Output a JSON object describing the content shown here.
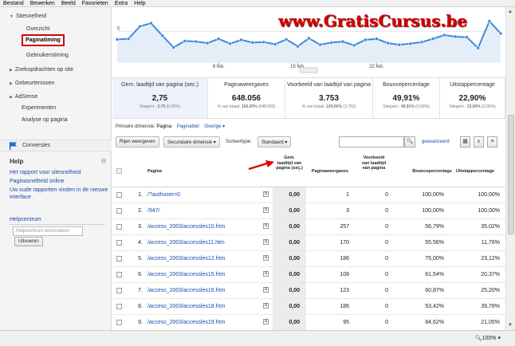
{
  "menu": [
    "Bestand",
    "Bewerken",
    "Beeld",
    "Favorieten",
    "Extra",
    "Help"
  ],
  "sidebar": {
    "section": "Sitesnelheid",
    "items": [
      "Overzicht",
      "Paginatiming",
      "Gebruikerstiming"
    ],
    "groups": [
      "Zoekopdrachten op site",
      "Gebeurtenissen",
      "AdSense"
    ],
    "links": [
      "Experimenten",
      "Analyse op pagina"
    ],
    "conversions": "Conversies"
  },
  "help": {
    "title": "Help",
    "collapse": "⊟",
    "links": [
      "Het rapport voor sitesnelheid",
      "Paginasnelheid online",
      "Uw oude rapporten vinden in de nieuwe interface"
    ],
    "center_title": "Helpcentrum",
    "search_placeholder": "Helpcentrum doorzoeken",
    "search_button": "Uitvoeren"
  },
  "chart_data": {
    "type": "line",
    "x_ticks": [
      "8 feb.",
      "15 feb.",
      "22 feb."
    ],
    "y_tick": "5",
    "y": [
      3.5,
      3.6,
      5.9,
      6.5,
      4.2,
      2.0,
      3.2,
      3.1,
      2.8,
      3.6,
      2.7,
      3.4,
      2.9,
      3.0,
      2.6,
      3.5,
      2.2,
      3.7,
      2.5,
      2.9,
      3.1,
      2.4,
      3.4,
      3.6,
      2.8,
      2.5,
      2.7,
      3.0,
      3.6,
      4.3,
      4.0,
      3.9,
      1.9,
      6.9,
      4.6
    ],
    "color": "#3d88d8"
  },
  "watermark": "www.GratisCursus.be",
  "metrics": [
    {
      "label": "Gem. laadtijd van pagina (sec.)",
      "value": "2,75",
      "sub_a": "Sitegem.:",
      "sub_b": "2,75",
      "sub_c": "(0,00%)"
    },
    {
      "label": "Paginaweergaves",
      "value": "648.056",
      "sub_a": "% van totaal:",
      "sub_b": "100,00%",
      "sub_c": "(648.056)"
    },
    {
      "label": "Voorbeeld van laadtijd van pagina",
      "value": "3.753",
      "sub_a": "% van totaal:",
      "sub_b": "100,00%",
      "sub_c": "(3.753)"
    },
    {
      "label": "Bouncepercentage",
      "value": "49,91%",
      "sub_a": "Sitegem.:",
      "sub_b": "49,91%",
      "sub_c": "(0,00%)"
    },
    {
      "label": "Uitstappercentage",
      "value": "22,90%",
      "sub_a": "Sitegem.:",
      "sub_b": "22,90%",
      "sub_c": "(0,00%)"
    }
  ],
  "dimension": {
    "label": "Primaire dimensie:",
    "current": "Pagina",
    "alt": "Paginatitel",
    "other": "Overige"
  },
  "toolbar": {
    "plot": "Rijen weergeven",
    "secondary": "Secundaire dimensie",
    "sort_label": "Sorteertype:",
    "sort_value": "Standaard",
    "advanced": "geavanceerd"
  },
  "table": {
    "headers": {
      "page": "Pagina",
      "loadtime": "Gem. laadtijd van pagina (sec.)",
      "views": "Paginaweergaves",
      "sample": "Voorbeeld van laadtijd van pagina",
      "bounce": "Bouncepercentage",
      "exit": "Uitstappercentage"
    },
    "rows": [
      {
        "n": "1.",
        "page": "/?authuser=0",
        "load": "0,00",
        "views": "1",
        "sample": "0",
        "bounce": "100,00%",
        "exit": "100,00%"
      },
      {
        "n": "2.",
        "page": "/947/",
        "load": "0,00",
        "views": "3",
        "sample": "0",
        "bounce": "100,00%",
        "exit": "100,00%"
      },
      {
        "n": "3.",
        "page": "/access_2003/accessles10.htm",
        "load": "0,00",
        "views": "257",
        "sample": "0",
        "bounce": "56,79%",
        "exit": "35,02%"
      },
      {
        "n": "4.",
        "page": "/access_2003/accessles11.htm",
        "load": "0,00",
        "views": "170",
        "sample": "0",
        "bounce": "55,56%",
        "exit": "11,76%"
      },
      {
        "n": "5.",
        "page": "/access_2003/accessles12.htm",
        "load": "0,00",
        "views": "186",
        "sample": "0",
        "bounce": "75,00%",
        "exit": "23,12%"
      },
      {
        "n": "6.",
        "page": "/access_2003/accessles15.htm",
        "load": "0,00",
        "views": "108",
        "sample": "0",
        "bounce": "61,54%",
        "exit": "20,37%"
      },
      {
        "n": "7.",
        "page": "/access_2003/accessles16.htm",
        "load": "0,00",
        "views": "123",
        "sample": "0",
        "bounce": "60,87%",
        "exit": "25,20%"
      },
      {
        "n": "8.",
        "page": "/access_2003/accessles18.htm",
        "load": "0,00",
        "views": "186",
        "sample": "0",
        "bounce": "53,42%",
        "exit": "39,78%"
      },
      {
        "n": "9.",
        "page": "/access_2003/accessles19.htm",
        "load": "0,00",
        "views": "95",
        "sample": "0",
        "bounce": "84,62%",
        "exit": "21,05%"
      }
    ]
  },
  "status": {
    "zoom": "100%"
  }
}
